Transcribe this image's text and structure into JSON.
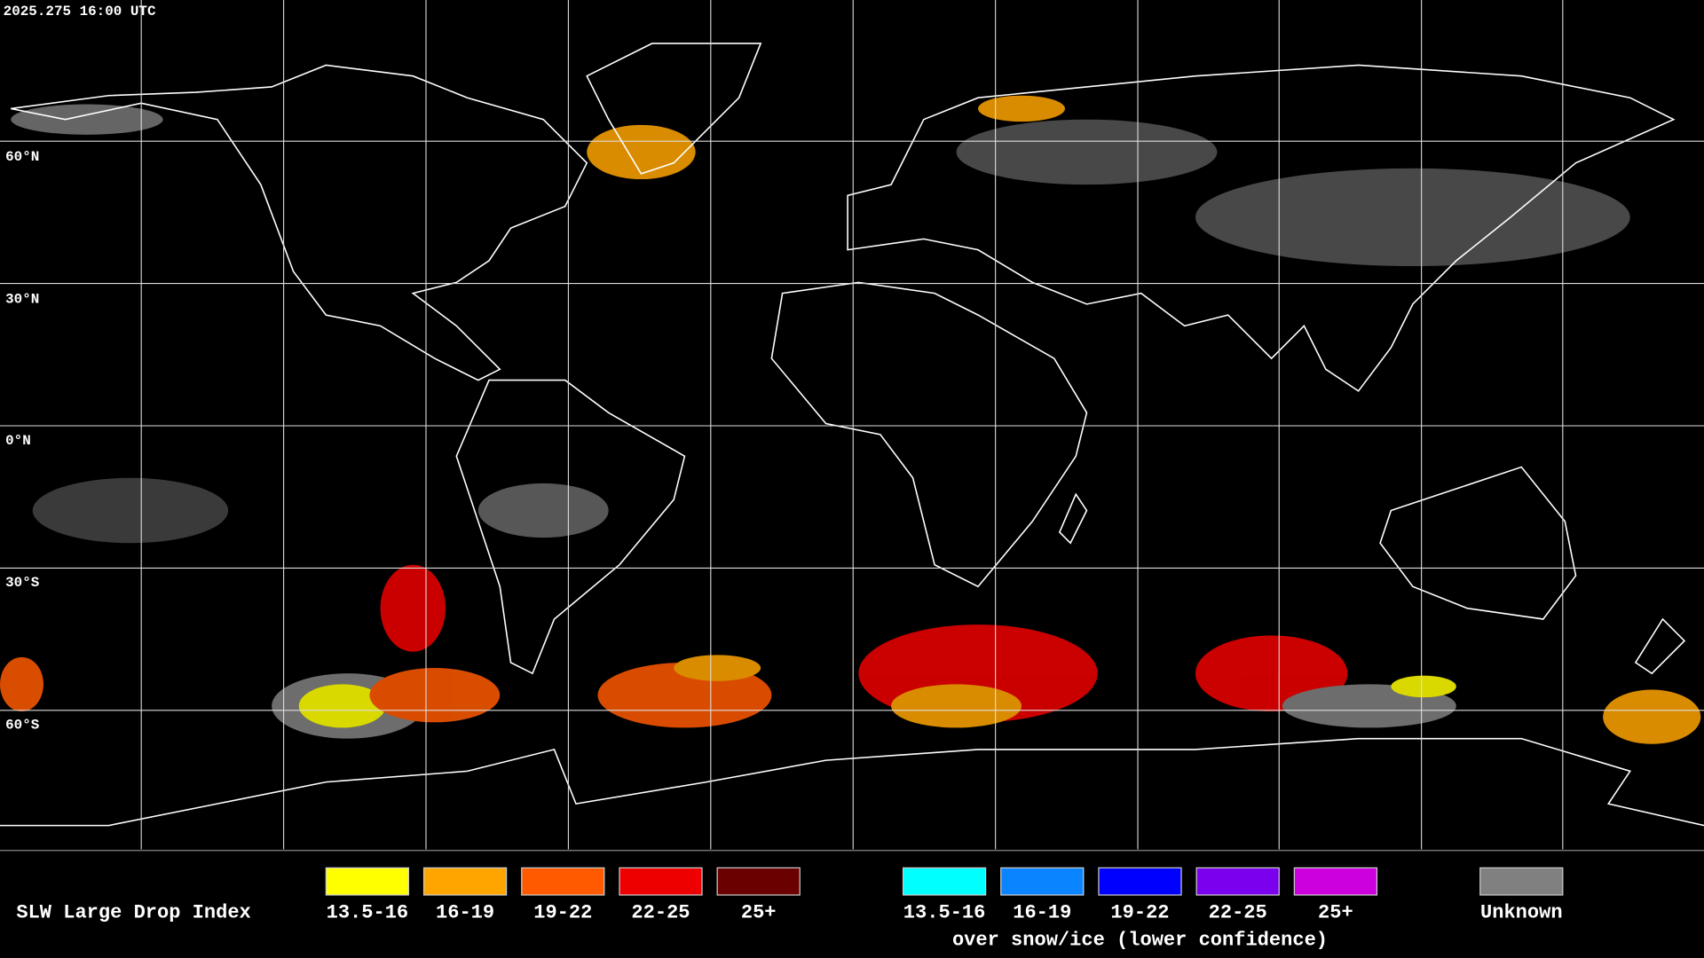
{
  "header": {
    "timestamp": "2025.275 16:00 UTC"
  },
  "map": {
    "lat_labels": [
      "60°N",
      "30°N",
      "0°N",
      "30°S",
      "60°S"
    ]
  },
  "legend": {
    "title": "SLW Large Drop Index",
    "groups": [
      {
        "items": [
          {
            "label": "13.5-16",
            "color": "#ffff00"
          },
          {
            "label": "16-19",
            "color": "#ffa500"
          },
          {
            "label": "19-22",
            "color": "#ff5a00"
          },
          {
            "label": "22-25",
            "color": "#ee0000"
          },
          {
            "label": "25+",
            "color": "#6a0000"
          }
        ]
      },
      {
        "items": [
          {
            "label": "13.5-16",
            "color": "#00ffff"
          },
          {
            "label": "16-19",
            "color": "#0a84ff"
          },
          {
            "label": "19-22",
            "color": "#0000ff"
          },
          {
            "label": "22-25",
            "color": "#7a00ee"
          },
          {
            "label": "25+",
            "color": "#cc00dd"
          }
        ],
        "caption": "over snow/ice (lower confidence)"
      }
    ],
    "unknown": {
      "label": "Unknown",
      "color": "#808080"
    }
  }
}
